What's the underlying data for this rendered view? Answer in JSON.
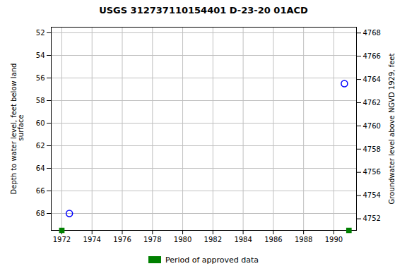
{
  "chart_data": {
    "type": "scatter",
    "title": "USGS 312737110154401 D-23-20 01ACD",
    "series": [
      {
        "color": "#0000ff",
        "marker": "circle",
        "x": [
          1972.5,
          1990.7
        ],
        "values": [
          68.0,
          56.5
        ]
      },
      {
        "name": "Period of approved data",
        "color": "#008000",
        "marker": "square",
        "x": [
          1972.0,
          1991.0
        ],
        "values": [
          69.5,
          69.5
        ]
      }
    ],
    "xlim": [
      1971.3,
      1991.5
    ],
    "xticks": [
      1972,
      1974,
      1976,
      1978,
      1980,
      1982,
      1984,
      1986,
      1988,
      1990
    ],
    "ylim": [
      69.5,
      51.5
    ],
    "yticks": [
      52,
      54,
      56,
      58,
      60,
      62,
      64,
      66,
      68
    ],
    "y2lim": [
      4751.0,
      4768.5
    ],
    "y2ticks": [
      4752,
      4754,
      4756,
      4758,
      4760,
      4762,
      4764,
      4766,
      4768
    ],
    "ylabel": "Depth to water level, feet below land\n surface",
    "y2label": "Groundwater level above NGVD 1929, feet",
    "grid": true,
    "legend": "bottom"
  }
}
